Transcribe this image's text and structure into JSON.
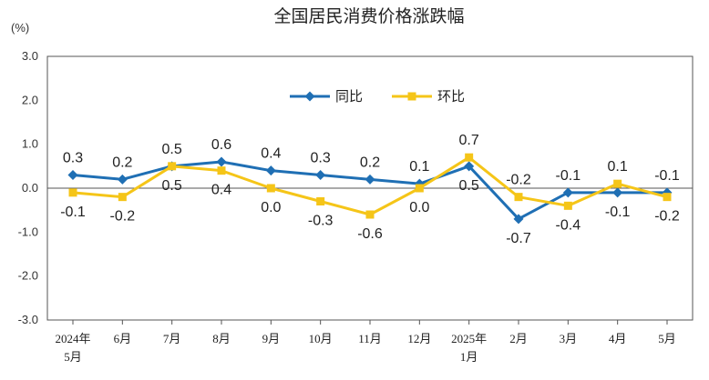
{
  "chart_data": {
    "type": "line",
    "title": "全国居民消费价格涨跌幅",
    "unit_label": "(%)",
    "ylim": [
      -3.0,
      3.0
    ],
    "yticks": [
      "3.0",
      "2.0",
      "1.0",
      "0.0",
      "-1.0",
      "-2.0",
      "-3.0"
    ],
    "categories": [
      [
        "2024年",
        "5月"
      ],
      [
        "6月"
      ],
      [
        "7月"
      ],
      [
        "8月"
      ],
      [
        "9月"
      ],
      [
        "10月"
      ],
      [
        "11月"
      ],
      [
        "12月"
      ],
      [
        "2025年",
        "1月"
      ],
      [
        "2月"
      ],
      [
        "3月"
      ],
      [
        "4月"
      ],
      [
        "5月"
      ]
    ],
    "legend_position": "top-center",
    "series": [
      {
        "name": "同比",
        "color": "#1f6fb4",
        "marker": "diamond",
        "values": [
          0.3,
          0.2,
          0.5,
          0.6,
          0.4,
          0.3,
          0.2,
          0.1,
          0.5,
          -0.7,
          -0.1,
          -0.1,
          -0.1
        ],
        "labels": [
          "0.3",
          "0.2",
          "0.5",
          "0.6",
          "0.4",
          "0.3",
          "0.2",
          "0.1",
          "0.5",
          "-0.7",
          "-0.1",
          "-0.1",
          "-0.1"
        ],
        "label_pos": [
          "above",
          "above",
          "below",
          "above",
          "above",
          "above",
          "above",
          "above",
          "below",
          "below",
          "above",
          "below",
          "above"
        ]
      },
      {
        "name": "环比",
        "color": "#f5c518",
        "marker": "square",
        "values": [
          -0.1,
          -0.2,
          0.5,
          0.4,
          0.0,
          -0.3,
          -0.6,
          0.0,
          0.7,
          -0.2,
          -0.4,
          0.1,
          -0.2
        ],
        "labels": [
          "-0.1",
          "-0.2",
          "0.5",
          "0.4",
          "0.0",
          "-0.3",
          "-0.6",
          "0.0",
          "0.7",
          "-0.2",
          "-0.4",
          "0.1",
          "-0.2"
        ],
        "label_pos": [
          "below",
          "below",
          "above",
          "below",
          "below",
          "below",
          "below",
          "below",
          "above",
          "above",
          "below",
          "above",
          "below"
        ]
      }
    ]
  }
}
